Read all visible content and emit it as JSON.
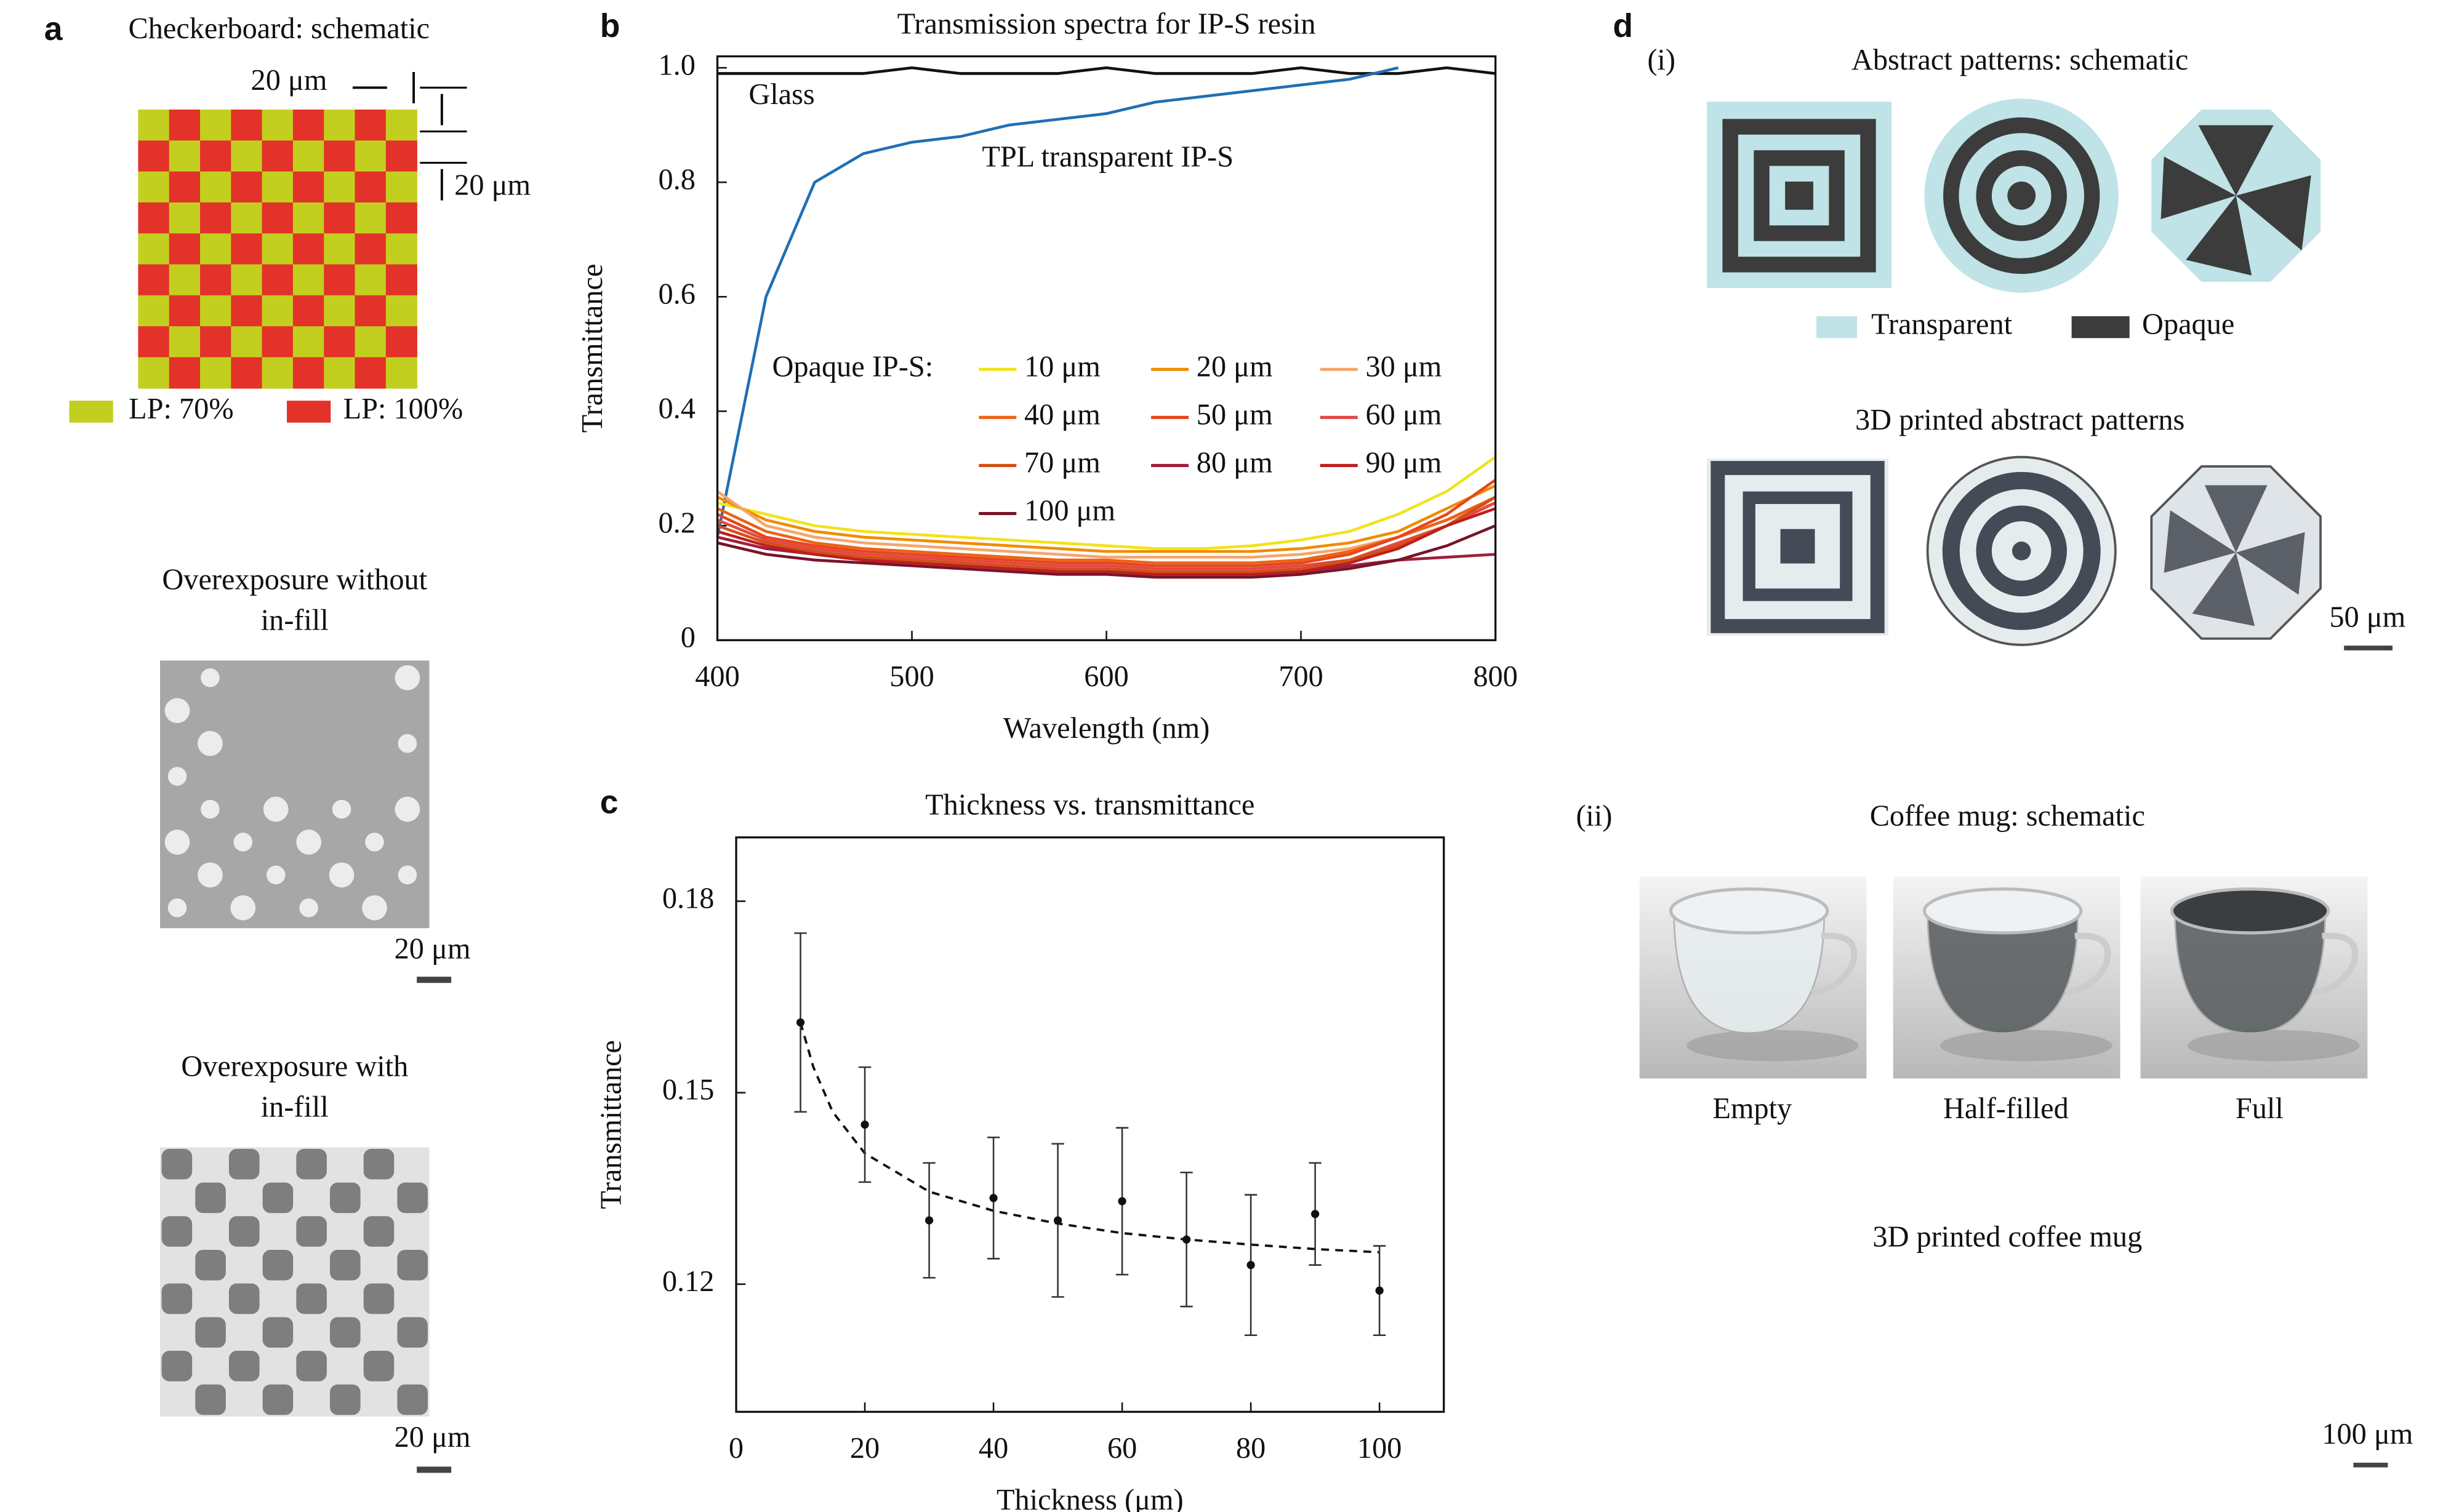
{
  "chart_data": [
    {
      "type": "line",
      "panel": "b",
      "title": "Transmission spectra for IP-S resin",
      "x_label": "Wavelength (nm)",
      "y_label": "Transmittance",
      "legend_title": "Opaque IP-S:",
      "x": [
        400,
        425,
        450,
        475,
        500,
        525,
        550,
        575,
        600,
        625,
        650,
        675,
        700,
        725,
        750,
        775,
        800
      ],
      "xlim": [
        400,
        800
      ],
      "xticks": [
        400,
        500,
        600,
        700,
        800
      ],
      "ylim": [
        0,
        1.02
      ],
      "yticks": [
        0,
        0.2,
        0.4,
        0.6,
        0.8,
        {
          "value": 1,
          "label": "1.0"
        }
      ],
      "series": [
        {
          "name": "Glass",
          "color": "#111111",
          "values": [
            0.99,
            0.99,
            0.99,
            0.99,
            1.0,
            0.99,
            0.99,
            0.99,
            1.0,
            0.99,
            0.99,
            0.99,
            1.0,
            0.99,
            0.99,
            1.0,
            0.99
          ]
        },
        {
          "name": "TPL transparent IP-S",
          "color": "#1f6fb4",
          "values": [
            0.18,
            0.6,
            0.8,
            0.85,
            0.87,
            0.88,
            0.9,
            0.91,
            0.92,
            0.94,
            0.95,
            0.96,
            0.97,
            0.98,
            1.0,
            null,
            null
          ]
        },
        {
          "name": "10 μm",
          "color": "#f2e21a",
          "values": [
            0.24,
            0.22,
            0.2,
            0.19,
            0.185,
            0.18,
            0.175,
            0.17,
            0.165,
            0.16,
            0.16,
            0.165,
            0.175,
            0.19,
            0.22,
            0.26,
            0.32
          ]
        },
        {
          "name": "20 μm",
          "color": "#f08c00",
          "values": [
            0.25,
            0.21,
            0.19,
            0.18,
            0.175,
            0.17,
            0.165,
            0.16,
            0.155,
            0.155,
            0.155,
            0.155,
            0.16,
            0.17,
            0.19,
            0.23,
            0.27
          ]
        },
        {
          "name": "30 μm",
          "color": "#f5a56e",
          "values": [
            0.26,
            0.2,
            0.18,
            0.17,
            0.165,
            0.16,
            0.155,
            0.15,
            0.145,
            0.145,
            0.145,
            0.145,
            0.15,
            0.16,
            0.18,
            0.21,
            0.24
          ]
        },
        {
          "name": "40 μm",
          "color": "#eb6414",
          "values": [
            0.23,
            0.19,
            0.17,
            0.16,
            0.155,
            0.15,
            0.145,
            0.14,
            0.14,
            0.135,
            0.135,
            0.135,
            0.14,
            0.155,
            0.18,
            0.21,
            0.25
          ]
        },
        {
          "name": "50 μm",
          "color": "#e6461e",
          "values": [
            0.22,
            0.18,
            0.165,
            0.155,
            0.15,
            0.145,
            0.14,
            0.135,
            0.135,
            0.13,
            0.13,
            0.13,
            0.135,
            0.15,
            0.18,
            0.22,
            0.28
          ]
        },
        {
          "name": "60 μm",
          "color": "#e64646",
          "values": [
            0.21,
            0.175,
            0.16,
            0.15,
            0.145,
            0.14,
            0.135,
            0.13,
            0.13,
            0.125,
            0.125,
            0.125,
            0.13,
            0.14,
            0.17,
            0.2,
            0.24
          ]
        },
        {
          "name": "70 μm",
          "color": "#d25014",
          "values": [
            0.2,
            0.17,
            0.155,
            0.145,
            0.14,
            0.135,
            0.13,
            0.125,
            0.125,
            0.12,
            0.12,
            0.12,
            0.125,
            0.14,
            0.165,
            0.2,
            0.25
          ]
        },
        {
          "name": "80 μm",
          "color": "#a01e3c",
          "values": [
            0.18,
            0.16,
            0.15,
            0.14,
            0.135,
            0.13,
            0.125,
            0.12,
            0.12,
            0.115,
            0.115,
            0.115,
            0.12,
            0.13,
            0.14,
            0.145,
            0.15
          ]
        },
        {
          "name": "90 μm",
          "color": "#be1e1e",
          "values": [
            0.19,
            0.165,
            0.15,
            0.14,
            0.135,
            0.13,
            0.125,
            0.12,
            0.12,
            0.115,
            0.115,
            0.115,
            0.12,
            0.135,
            0.16,
            0.2,
            0.23
          ]
        },
        {
          "name": "100 μm",
          "color": "#781428",
          "values": [
            0.17,
            0.15,
            0.14,
            0.135,
            0.13,
            0.125,
            0.12,
            0.115,
            0.115,
            0.11,
            0.11,
            0.11,
            0.115,
            0.125,
            0.14,
            0.165,
            0.2
          ]
        }
      ]
    },
    {
      "type": "scatter",
      "panel": "c",
      "title": "Thickness vs. transmittance",
      "x_label": "Thickness (μm)",
      "y_label": "Transmittance",
      "x": [
        10,
        20,
        30,
        40,
        50,
        60,
        70,
        80,
        90,
        100
      ],
      "values": [
        0.161,
        0.145,
        0.13,
        0.1335,
        0.13,
        0.133,
        0.127,
        0.123,
        0.131,
        0.119
      ],
      "errors": [
        0.014,
        0.009,
        0.009,
        0.0095,
        0.012,
        0.0115,
        0.0105,
        0.011,
        0.008,
        0.007
      ],
      "color": "#111111",
      "fit": {
        "x": [
          10,
          12,
          15,
          20,
          30,
          40,
          50,
          60,
          70,
          80,
          90,
          100
        ],
        "values": [
          0.161,
          0.154,
          0.147,
          0.1405,
          0.1345,
          0.1315,
          0.1295,
          0.128,
          0.127,
          0.1262,
          0.1255,
          0.125
        ]
      },
      "xlim": [
        0,
        110
      ],
      "xticks": [
        0,
        20,
        40,
        60,
        80,
        100
      ],
      "ylim": [
        0.1,
        0.19
      ],
      "yticks": [
        0.12,
        0.15,
        0.18
      ]
    }
  ],
  "panel_a": {
    "label": "a",
    "title": "Checkerboard: schematic",
    "dim_h": "20 μm",
    "dim_v": "20 μm",
    "legend": [
      "LP: 70%",
      "LP: 100%"
    ],
    "image1_title": [
      "Overexposure without",
      "in-fill"
    ],
    "image1_scale": "20 μm",
    "image2_title": [
      "Overexposure with",
      "in-fill"
    ],
    "image2_scale": "20 μm"
  },
  "panel_d": {
    "label": "d",
    "part1": "(i)",
    "title1": "Abstract patterns: schematic",
    "legend": [
      "Transparent",
      "Opaque"
    ],
    "title2": "3D printed abstract patterns",
    "scale1": "50 μm",
    "part2": "(ii)",
    "title3": "Coffee mug: schematic",
    "mug_labels": [
      "Empty",
      "Half-filled",
      "Full"
    ],
    "title4": "3D printed coffee mug",
    "scale2": "100 μm"
  }
}
